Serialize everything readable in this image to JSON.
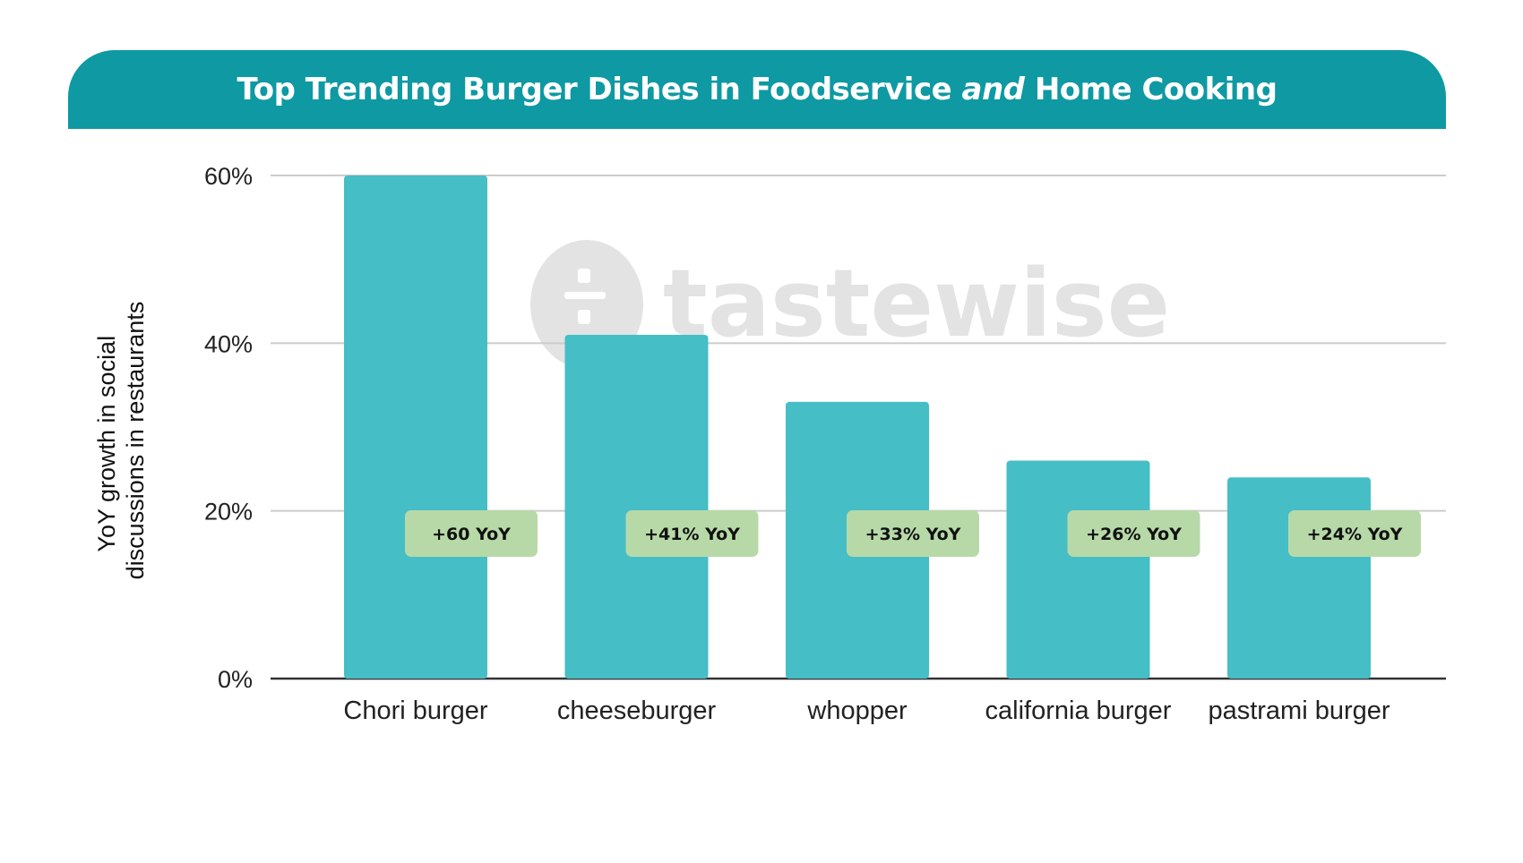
{
  "header": {
    "title_part1": "Top Trending Burger Dishes in Foodservice ",
    "title_em": "and",
    "title_part2": " Home Cooking"
  },
  "watermark": {
    "text": "tastewise"
  },
  "colors": {
    "header_bg": "#0e99a3",
    "bar": "#46bec6",
    "badge": "#b7d9a8",
    "grid": "#cccccc",
    "axis": "#333333"
  },
  "chart_data": {
    "type": "bar",
    "categories": [
      "Chori burger",
      "cheeseburger",
      "whopper",
      "california burger",
      "pastrami burger"
    ],
    "values": [
      60,
      41,
      33,
      26,
      24
    ],
    "data_labels": [
      "+60 YoY",
      "+41% YoY",
      "+33% YoY",
      "+26% YoY",
      "+24% YoY"
    ],
    "ylabel_lines": [
      "YoY growth in social",
      "discussions in restaurants"
    ],
    "y_ticks": [
      0,
      20,
      40,
      60
    ],
    "y_tick_labels": [
      "0%",
      "20%",
      "40%",
      "60%"
    ],
    "ylim": [
      0,
      60
    ],
    "grid": true
  }
}
